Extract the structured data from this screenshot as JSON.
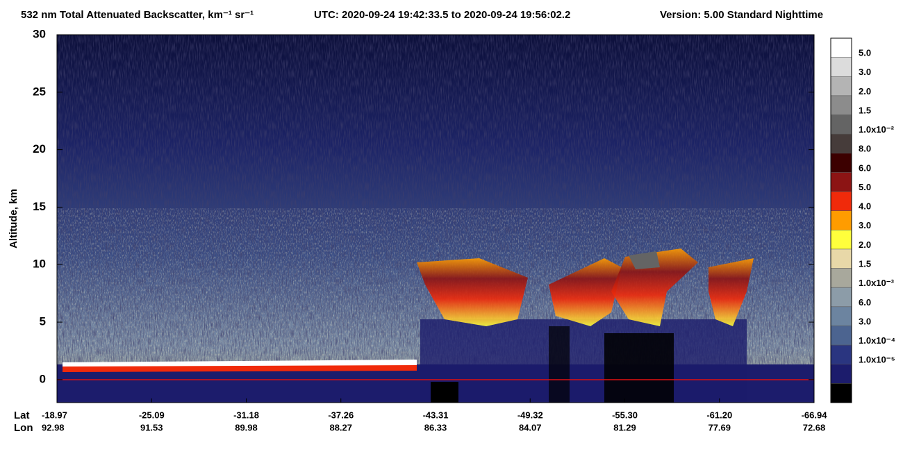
{
  "chart_data": {
    "type": "curtain",
    "title": "532 nm Total Attenuated Backscatter, km⁻¹ sr⁻¹",
    "time_range": "UTC:  2020-09-24 19:42:33.5  to  2020-09-24 19:56:02.2",
    "version": "Version: 5.00  Standard  Nighttime",
    "ylabel": "Altitude, km",
    "ylim": [
      -2,
      30
    ],
    "yticks": [
      0,
      5,
      10,
      15,
      20,
      25,
      30
    ],
    "lat_title": "Lat",
    "lon_title": "Lon",
    "lat_labels": [
      "-18.97",
      "-25.09",
      "-31.18",
      "-37.26",
      "-43.31",
      "-49.32",
      "-55.30",
      "-61.20",
      "-66.94"
    ],
    "lon_labels": [
      "92.98",
      "91.53",
      "89.98",
      "88.27",
      "86.33",
      "84.07",
      "81.29",
      "77.69",
      "72.68"
    ],
    "colorbar": {
      "colors": [
        "#ffffff",
        "#dcdcdc",
        "#b4b4b4",
        "#8c8c8c",
        "#646464",
        "#463c3a",
        "#3c0000",
        "#8c1414",
        "#f02a0a",
        "#ff9c00",
        "#ffff3c",
        "#e8d8a8",
        "#a8a89c",
        "#8c9ca8",
        "#6c84a0",
        "#4c6490",
        "#2a3580",
        "#1c1c6c",
        "#000000"
      ],
      "labels": [
        "5.0",
        "3.0",
        "2.0",
        "1.5",
        "1.0x10⁻²",
        "8.0",
        "6.0",
        "5.0",
        "4.0",
        "3.0",
        "2.0",
        "1.5",
        "1.0x10⁻³",
        "6.0",
        "3.0",
        "1.0x10⁻⁴",
        "1.0x10⁻⁵"
      ]
    }
  }
}
